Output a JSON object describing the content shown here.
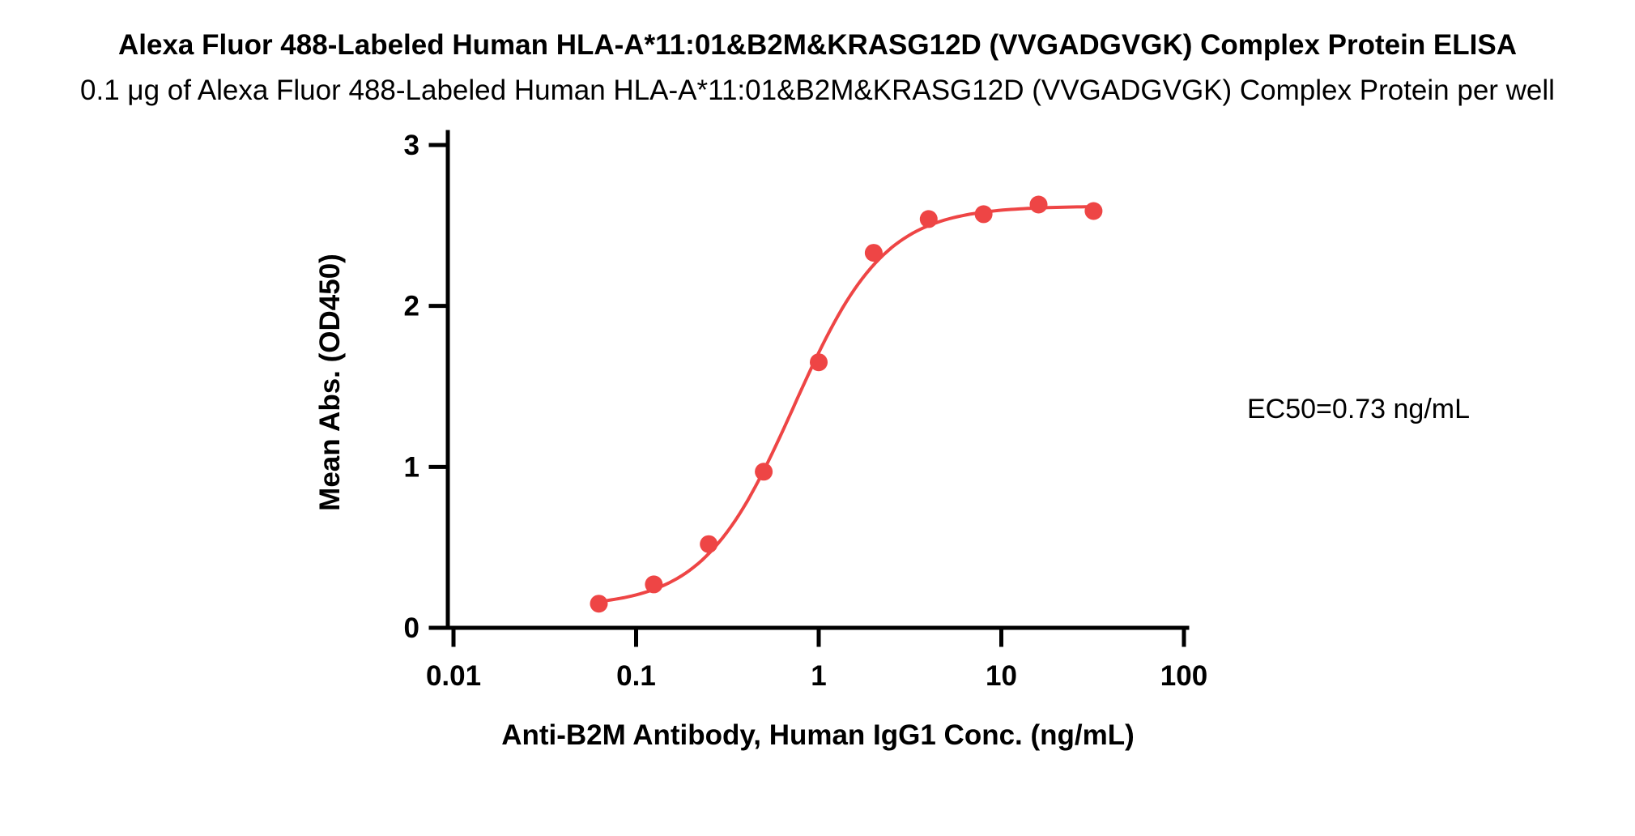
{
  "chart_data": {
    "type": "scatter",
    "title": "Alexa Fluor 488-Labeled Human HLA-A*11:01&B2M&KRASG12D (VVGADGVGK) Complex Protein ELISA",
    "subtitle": "0.1 μg of Alexa Fluor 488-Labeled Human HLA-A*11:01&B2M&KRASG12D (VVGADGVGK) Complex Protein per well",
    "xlabel": "Anti-B2M Antibody, Human IgG1 Conc. (ng/mL)",
    "ylabel": "Mean Abs. (OD450)",
    "annotation": "EC50=0.73 ng/mL",
    "x_scale": "log10",
    "xlim": [
      0.01,
      100
    ],
    "ylim": [
      0,
      3
    ],
    "x_ticks": [
      "0.01",
      "0.1",
      "1",
      "10",
      "100"
    ],
    "y_ticks": [
      "0",
      "1",
      "2",
      "3"
    ],
    "grid": false,
    "legend": "none",
    "x": [
      0.0625,
      0.125,
      0.25,
      0.5,
      1,
      2,
      4,
      8,
      16,
      32
    ],
    "y": [
      0.15,
      0.27,
      0.52,
      0.97,
      1.65,
      2.33,
      2.54,
      2.57,
      2.63,
      2.59
    ],
    "fit": {
      "model": "4PL",
      "bottom": 0.13,
      "top": 2.62,
      "ec50": 0.73,
      "hill": 1.75
    },
    "marker_color": "#EE4545",
    "line_color": "#EE4545",
    "axis_color": "#000000"
  }
}
